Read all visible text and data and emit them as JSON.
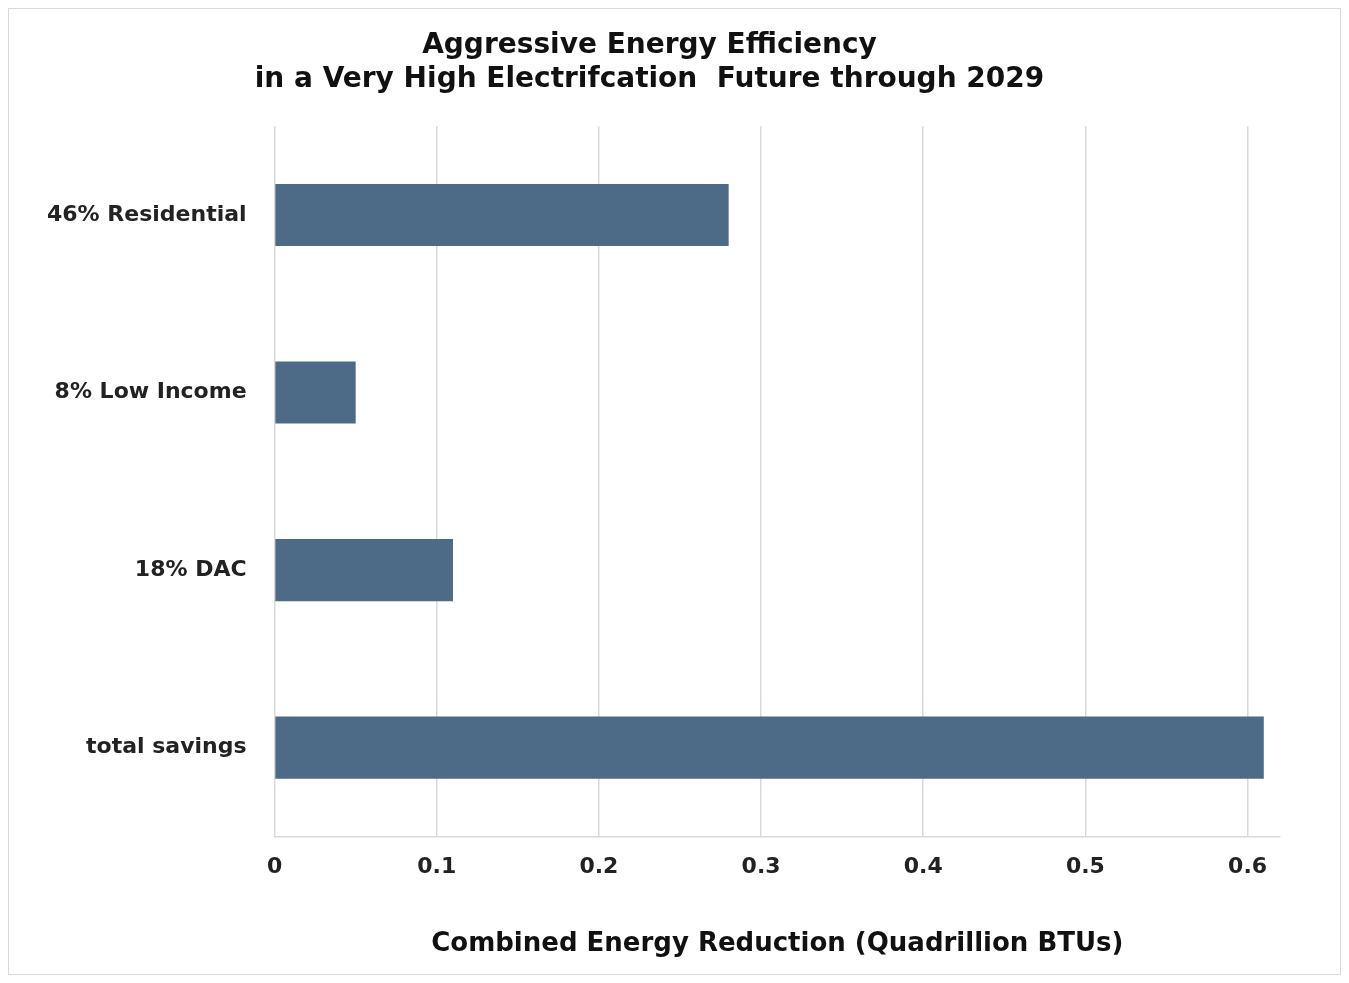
{
  "chart_data": {
    "type": "bar",
    "orientation": "horizontal",
    "title": [
      "Aggressive Energy Efficiency",
      "in a Very High Electrifcation  Future through 2029"
    ],
    "categories": [
      "46% Residential",
      "8% Low Income",
      "18% DAC",
      "total savings"
    ],
    "values": [
      0.28,
      0.05,
      0.11,
      0.61
    ],
    "color": "#4d6a86",
    "xlabel": "Combined Energy Reduction (Quadrillion BTUs)",
    "xlim": [
      0,
      0.62
    ],
    "xticks": [
      0,
      0.1,
      0.2,
      0.3,
      0.4,
      0.5,
      0.6
    ],
    "grid": "x"
  }
}
